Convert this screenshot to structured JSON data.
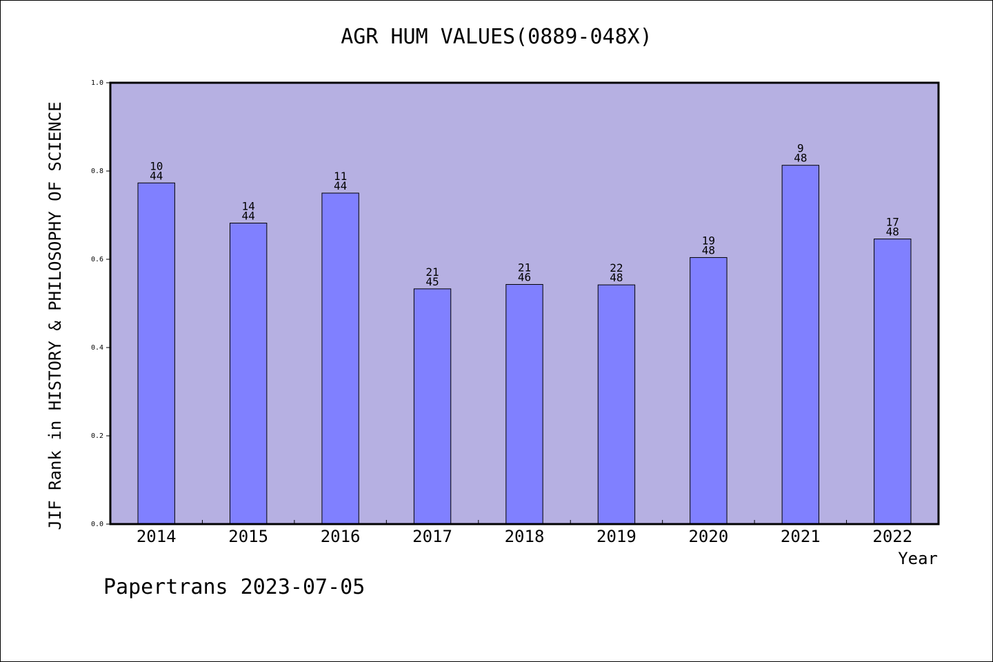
{
  "chart_data": {
    "type": "bar",
    "title": "AGR HUM VALUES(0889-048X)",
    "xlabel": "Year",
    "ylabel": "JIF Rank in HISTORY & PHILOSOPHY OF SCIENCE",
    "ylim": [
      0,
      1.0
    ],
    "yticks": [
      "0.0",
      "0.2",
      "0.4",
      "0.6",
      "0.8",
      "1.0"
    ],
    "categories": [
      "2014",
      "2015",
      "2016",
      "2017",
      "2018",
      "2019",
      "2020",
      "2021",
      "2022"
    ],
    "values": [
      0.773,
      0.682,
      0.75,
      0.533,
      0.543,
      0.542,
      0.604,
      0.813,
      0.646
    ],
    "rank_labels": [
      {
        "rank": "10",
        "total": "44"
      },
      {
        "rank": "14",
        "total": "44"
      },
      {
        "rank": "11",
        "total": "44"
      },
      {
        "rank": "21",
        "total": "45"
      },
      {
        "rank": "21",
        "total": "46"
      },
      {
        "rank": "22",
        "total": "48"
      },
      {
        "rank": "19",
        "total": "48"
      },
      {
        "rank": "9",
        "total": "48"
      },
      {
        "rank": "17",
        "total": "48"
      }
    ],
    "grid": false,
    "colors": {
      "plot_bg": "#b6b0e2",
      "bar": "#8080ff",
      "bar_edge": "#000000"
    }
  },
  "footer": "Papertrans 2023-07-05"
}
